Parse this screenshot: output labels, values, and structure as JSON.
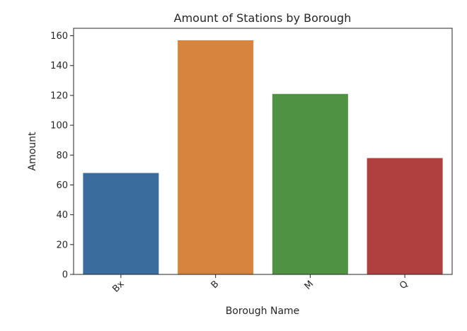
{
  "chart_data": {
    "type": "bar",
    "title": "Amount of Stations by Borough",
    "xlabel": "Borough Name",
    "ylabel": "Amount",
    "categories": [
      "Bx",
      "B",
      "M",
      "Q"
    ],
    "values": [
      68,
      157,
      121,
      78
    ],
    "colors": [
      "#3a6d9e",
      "#d6843e",
      "#4f9244",
      "#b0403f"
    ],
    "ylim": [
      0,
      165
    ],
    "yticks": [
      0,
      20,
      40,
      60,
      80,
      100,
      120,
      140,
      160
    ],
    "grid": false,
    "legend": "none"
  }
}
